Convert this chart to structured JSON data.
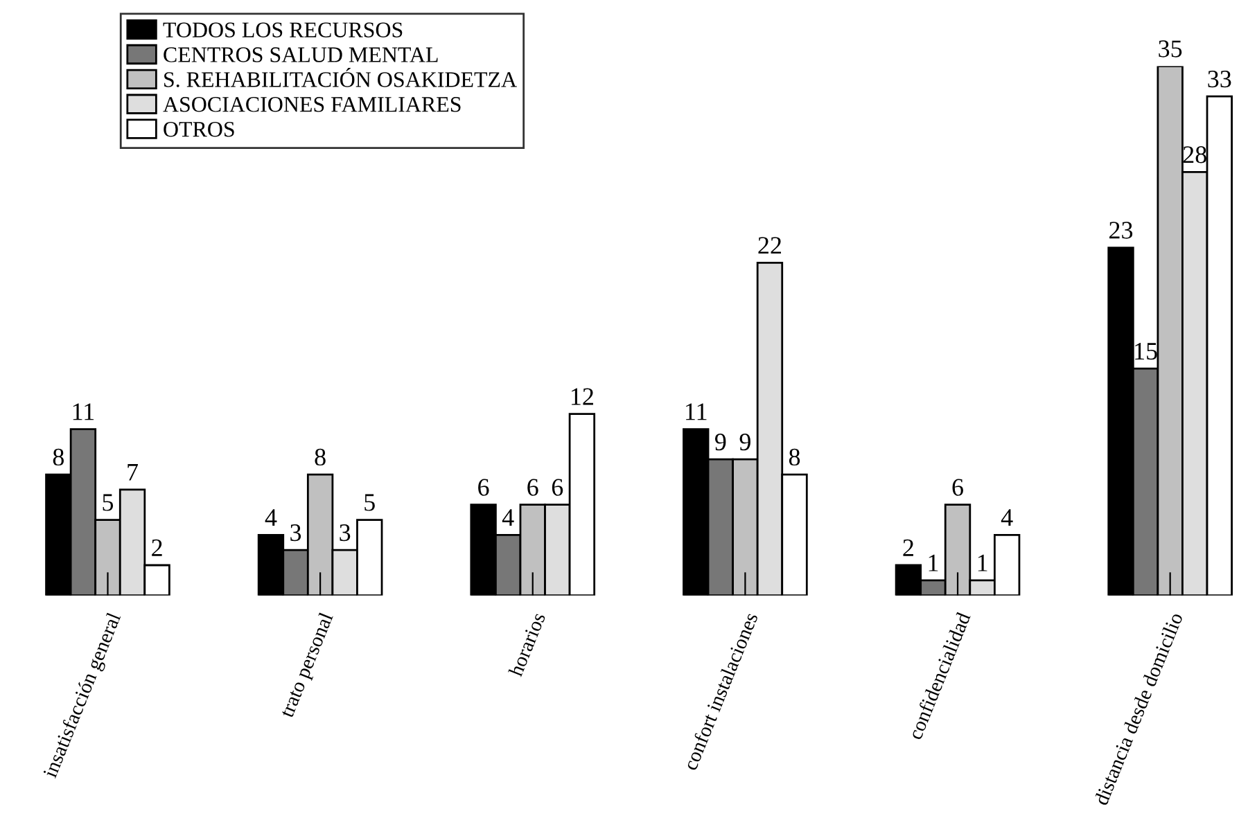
{
  "chart_data": {
    "type": "bar",
    "categories": [
      "insatisfacción general",
      "trato personal",
      "horarios",
      "confort instalaciones",
      "confidencialidad",
      "distancia desde domicilio"
    ],
    "series": [
      {
        "name": "TODOS LOS RECURSOS",
        "color": "#000000",
        "values": [
          8,
          4,
          6,
          11,
          2,
          23
        ]
      },
      {
        "name": "CENTROS SALUD MENTAL",
        "color": "#777777",
        "values": [
          11,
          3,
          4,
          9,
          1,
          15
        ]
      },
      {
        "name": "S. REHABILITACIÓN OSAKIDETZA",
        "color": "#c0c0c0",
        "values": [
          5,
          8,
          6,
          9,
          6,
          35
        ]
      },
      {
        "name": "ASOCIACIONES FAMILIARES",
        "color": "#dedede",
        "values": [
          7,
          3,
          6,
          22,
          1,
          28
        ]
      },
      {
        "name": "OTROS",
        "color": "#ffffff",
        "values": [
          2,
          5,
          12,
          8,
          4,
          33
        ]
      }
    ],
    "data_labels": true,
    "legend": "top left"
  }
}
